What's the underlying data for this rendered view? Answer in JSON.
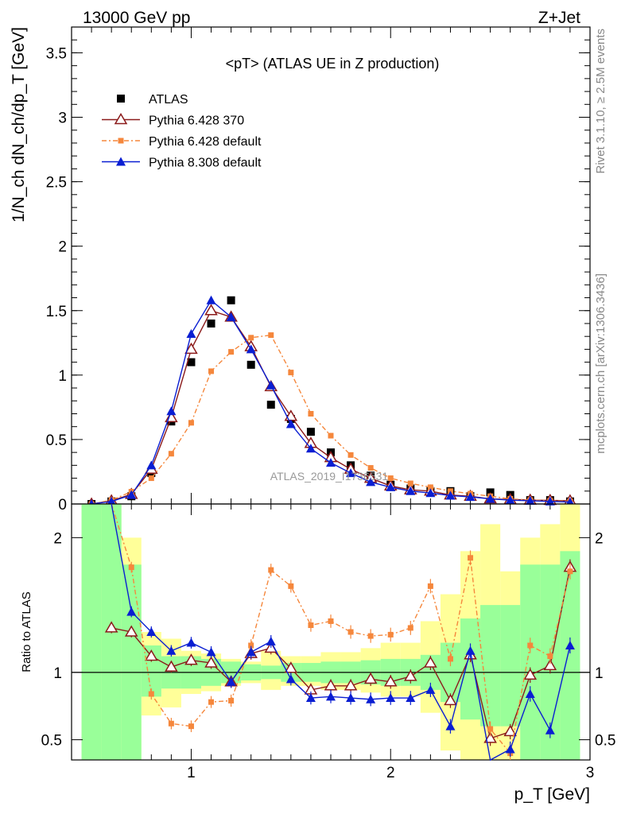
{
  "header": {
    "left": "13000 GeV pp",
    "right": "Z+Jet"
  },
  "side_labels": {
    "rivet": "Rivet 3.1.10, ≥ 2.5M events",
    "mcplots": "mcplots.cern.ch [arXiv:1306.3436]"
  },
  "watermark": "ATLAS_2019_I1736531",
  "colors": {
    "atlas": "#000000",
    "p6_370": "#8b1a1a",
    "p6_default": "#f5873c",
    "p8_default": "#0a1ed2",
    "band_green": "#99ff99",
    "band_yellow": "#ffff99"
  },
  "chart_data": [
    {
      "type": "line",
      "title": "<pT> (ATLAS UE in Z production)",
      "xlabel": "p_T [GeV]",
      "ylabel": "1/N_ch dN_ch/dp_T [GeV]",
      "xlim": [
        0.4,
        3.0
      ],
      "ylim": [
        0,
        3.7
      ],
      "y_ticks": [
        "0",
        "0.5",
        "1",
        "1.5",
        "2",
        "2.5",
        "3",
        "3.5"
      ],
      "legend_position": "top-left",
      "x": [
        0.5,
        0.6,
        0.7,
        0.8,
        0.9,
        1.0,
        1.1,
        1.2,
        1.3,
        1.4,
        1.5,
        1.6,
        1.7,
        1.8,
        1.9,
        2.0,
        2.1,
        2.2,
        2.3,
        2.4,
        2.5,
        2.6,
        2.7,
        2.8,
        2.9
      ],
      "series": [
        {
          "name": "ATLAS",
          "marker": "square",
          "values": [
            0.0,
            0.02,
            0.06,
            0.24,
            0.64,
            1.1,
            1.4,
            1.58,
            1.08,
            0.77,
            0.66,
            0.56,
            0.4,
            0.3,
            0.22,
            0.15,
            0.12,
            0.1,
            0.1,
            0.06,
            0.09,
            0.07,
            0.03,
            0.03,
            0.02
          ]
        },
        {
          "name": "Pythia 6.428 370",
          "marker": "open-triangle",
          "values": [
            0.0,
            0.025,
            0.075,
            0.27,
            0.67,
            1.2,
            1.5,
            1.45,
            1.22,
            0.91,
            0.68,
            0.47,
            0.36,
            0.27,
            0.2,
            0.14,
            0.11,
            0.1,
            0.07,
            0.06,
            0.04,
            0.035,
            0.03,
            0.028,
            0.025
          ]
        },
        {
          "name": "Pythia 6.428 default",
          "marker": "small-square",
          "dashed": true,
          "values": [
            0.0,
            0.03,
            0.095,
            0.2,
            0.39,
            0.63,
            1.03,
            1.18,
            1.29,
            1.31,
            1.02,
            0.7,
            0.53,
            0.38,
            0.28,
            0.2,
            0.16,
            0.13,
            0.1,
            0.08,
            0.06,
            0.04,
            0.03,
            0.025,
            0.02
          ]
        },
        {
          "name": "Pythia 8.308 default",
          "marker": "triangle",
          "values": [
            0.0,
            0.02,
            0.07,
            0.3,
            0.72,
            1.32,
            1.58,
            1.45,
            1.2,
            0.92,
            0.62,
            0.43,
            0.32,
            0.24,
            0.17,
            0.13,
            0.1,
            0.085,
            0.065,
            0.055,
            0.04,
            0.03,
            0.025,
            0.02,
            0.015
          ]
        }
      ]
    },
    {
      "type": "line",
      "title": "",
      "xlabel": "p_T [GeV]",
      "ylabel": "Ratio to ATLAS",
      "xlim": [
        0.4,
        3.0
      ],
      "ylim": [
        0.35,
        2.25
      ],
      "x_ticks": [
        "1",
        "2",
        "3"
      ],
      "y_ticks": [
        "0.5",
        "1",
        "2"
      ],
      "reference_line": 1,
      "x": [
        0.6,
        0.7,
        0.8,
        0.9,
        1.0,
        1.1,
        1.2,
        1.3,
        1.4,
        1.5,
        1.6,
        1.7,
        1.8,
        1.9,
        2.0,
        2.1,
        2.2,
        2.3,
        2.4,
        2.5,
        2.6,
        2.7,
        2.8,
        2.9
      ],
      "bands": {
        "bin_edges": [
          0.45,
          0.55,
          0.65,
          0.75,
          0.85,
          0.95,
          1.05,
          1.15,
          1.25,
          1.35,
          1.45,
          1.55,
          1.65,
          1.75,
          1.85,
          1.95,
          2.05,
          2.15,
          2.25,
          2.35,
          2.45,
          2.55,
          2.65,
          2.75,
          2.85,
          2.95
        ],
        "green_low": [
          0.35,
          0.35,
          0.35,
          0.82,
          0.88,
          0.88,
          0.9,
          0.92,
          0.94,
          0.95,
          0.93,
          0.93,
          0.92,
          0.92,
          0.91,
          0.9,
          0.9,
          0.87,
          0.78,
          0.65,
          0.6,
          0.6,
          0.35,
          0.35,
          0.35
        ],
        "green_high": [
          2.25,
          2.25,
          1.8,
          1.2,
          1.12,
          1.12,
          1.1,
          1.08,
          1.06,
          1.05,
          1.07,
          1.07,
          1.08,
          1.08,
          1.09,
          1.1,
          1.1,
          1.13,
          1.22,
          1.4,
          1.5,
          1.5,
          1.8,
          1.8,
          1.9
        ],
        "yellow_low": [
          0.35,
          0.35,
          0.35,
          0.68,
          0.74,
          0.84,
          0.86,
          0.9,
          0.92,
          0.87,
          0.9,
          0.9,
          0.87,
          0.87,
          0.85,
          0.82,
          0.82,
          0.7,
          0.42,
          0.35,
          0.35,
          0.35,
          0.35,
          0.35,
          0.35
        ],
        "yellow_high": [
          2.25,
          2.25,
          2.0,
          1.3,
          1.25,
          1.16,
          1.14,
          1.1,
          1.08,
          1.16,
          1.12,
          1.12,
          1.15,
          1.15,
          1.18,
          1.22,
          1.22,
          1.38,
          1.58,
          1.9,
          2.1,
          1.75,
          2.0,
          2.1,
          2.25
        ]
      },
      "series": [
        {
          "name": "Pythia 6.428 370",
          "values": [
            1.33,
            1.3,
            1.12,
            1.04,
            1.09,
            1.07,
            0.93,
            1.14,
            1.18,
            1.03,
            0.87,
            0.9,
            0.9,
            0.95,
            0.93,
            0.97,
            1.07,
            0.79,
            1.13,
            0.51,
            0.56,
            0.98,
            1.05,
            1.78
          ]
        },
        {
          "name": "Pythia 6.428 default",
          "values": [
            2.3,
            1.78,
            0.84,
            0.62,
            0.6,
            0.78,
            0.79,
            1.2,
            1.76,
            1.64,
            1.35,
            1.38,
            1.3,
            1.27,
            1.28,
            1.33,
            1.64,
            1.1,
            1.85,
            0.58,
            0.4,
            1.2,
            1.12,
            1.75
          ]
        },
        {
          "name": "Pythia 8.308 default",
          "values": [
            2.6,
            1.45,
            1.3,
            1.16,
            1.22,
            1.15,
            0.93,
            1.15,
            1.23,
            0.95,
            0.81,
            0.82,
            0.81,
            0.8,
            0.81,
            0.81,
            0.87,
            0.6,
            1.16,
            0.35,
            0.43,
            0.84,
            0.57,
            1.2
          ]
        }
      ]
    }
  ]
}
